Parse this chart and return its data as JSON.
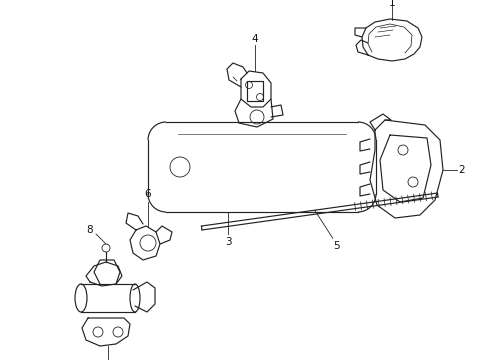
{
  "background_color": "#ffffff",
  "line_color": "#222222",
  "label_color": "#111111",
  "fig_width": 4.9,
  "fig_height": 3.6,
  "dpi": 100
}
